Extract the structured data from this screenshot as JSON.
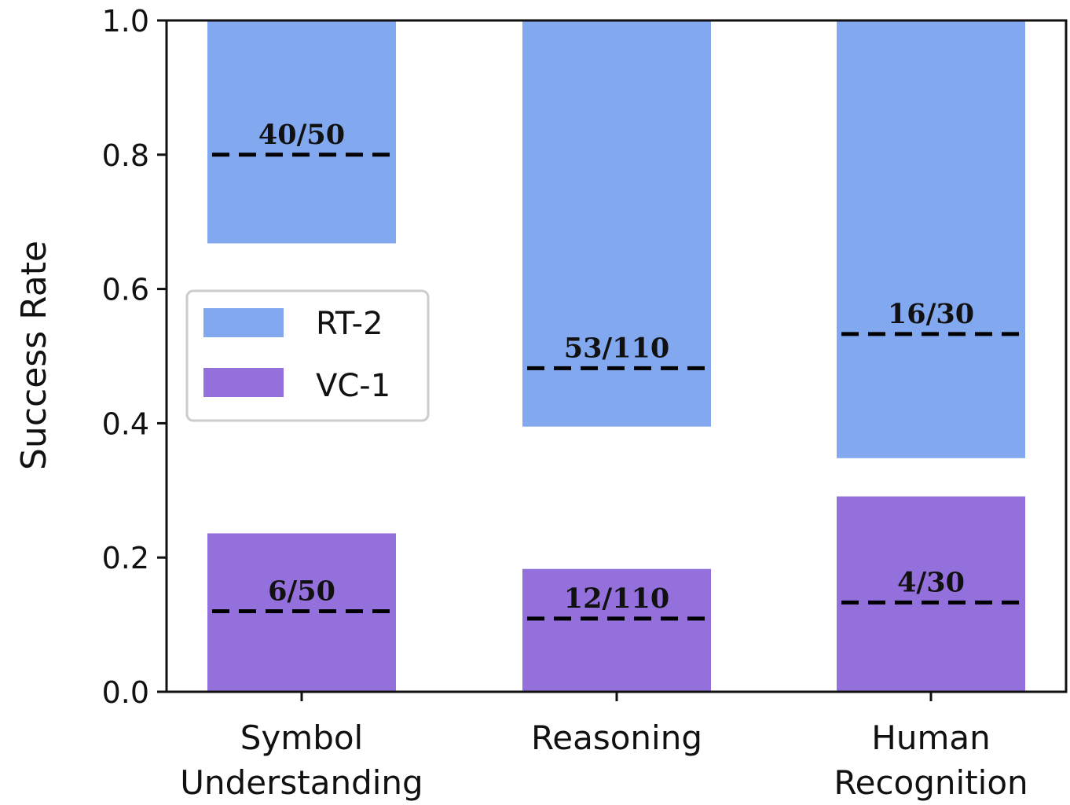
{
  "chart_data": {
    "type": "bar",
    "ylabel": "Success Rate",
    "ylim": [
      0,
      1
    ],
    "yticks": [
      "0.0",
      "0.2",
      "0.4",
      "0.6",
      "0.8",
      "1.0"
    ],
    "categories": [
      [
        "Symbol",
        "Understanding"
      ],
      [
        "Reasoning"
      ],
      [
        "Human",
        "Recognition"
      ]
    ],
    "series": [
      {
        "name": "RT-2",
        "color": "#82a8ef",
        "ranges": [
          [
            0.668,
            1.0
          ],
          [
            0.395,
            1.0
          ],
          [
            0.348,
            1.0
          ]
        ],
        "success_rates": [
          0.8,
          0.482,
          0.533
        ],
        "labels": [
          "40/50",
          "53/110",
          "16/30"
        ]
      },
      {
        "name": "VC-1",
        "color": "#9370db",
        "ranges": [
          [
            0.0,
            0.236
          ],
          [
            0.0,
            0.183
          ],
          [
            0.0,
            0.291
          ]
        ],
        "success_rates": [
          0.12,
          0.109,
          0.133
        ],
        "labels": [
          "6/50",
          "12/110",
          "4/30"
        ]
      }
    ],
    "legend": {
      "position": "center-left",
      "entries": [
        "RT-2",
        "VC-1"
      ]
    }
  }
}
